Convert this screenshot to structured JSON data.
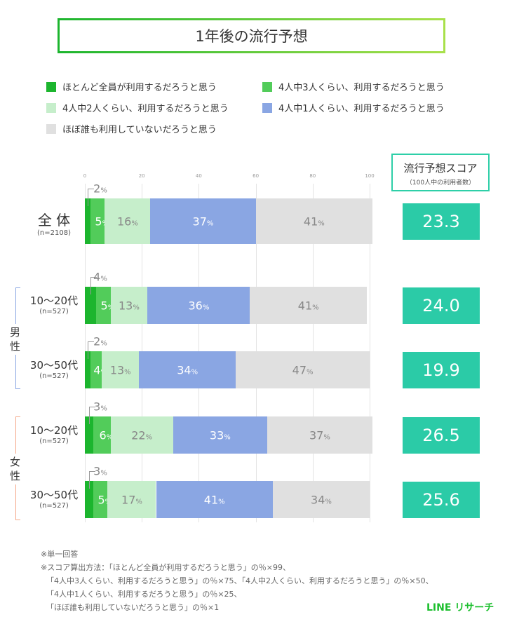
{
  "chart_data": {
    "type": "bar",
    "stacked": true,
    "orientation": "horizontal",
    "title": "1年後の流行予想",
    "xlim": [
      0,
      100
    ],
    "ticks": [
      0,
      20,
      40,
      60,
      80,
      100
    ],
    "grid": true,
    "legend_placement": "top",
    "series": [
      {
        "name": "ほとんど全員が利用するだろうと思う",
        "color": "#1cb52e"
      },
      {
        "name": "4人中3人くらい、利用するだろうと思う",
        "color": "#52cc5a"
      },
      {
        "name": "4人中2人くらい、利用するだろうと思う",
        "color": "#c6eecb"
      },
      {
        "name": "4人中1人くらい、利用するだろうと思う",
        "color": "#8aa6e3"
      },
      {
        "name": "ほぼ誰も利用していないだろうと思う",
        "color": "#e0e0e0"
      }
    ],
    "rows": [
      {
        "label": "全 体",
        "n": "(n=2108)",
        "values": [
          2,
          5,
          16,
          37,
          41
        ],
        "score": "23.3"
      },
      {
        "label": "10〜20代",
        "n": "(n=527)",
        "values": [
          4,
          5,
          13,
          36,
          41
        ],
        "score": "24.0"
      },
      {
        "label": "30〜50代",
        "n": "(n=527)",
        "values": [
          2,
          4,
          13,
          34,
          47
        ],
        "score": "19.9"
      },
      {
        "label": "10〜20代",
        "n": "(n=527)",
        "values": [
          3,
          6,
          22,
          33,
          37
        ],
        "score": "26.5"
      },
      {
        "label": "30〜50代",
        "n": "(n=527)",
        "values": [
          3,
          5,
          17,
          41,
          34
        ],
        "score": "25.6"
      }
    ],
    "groups": [
      {
        "label": "男\n性",
        "color": "#8aa6e3"
      },
      {
        "label": "女\n性",
        "color": "#f5a98a"
      }
    ],
    "percent_unit": "%"
  },
  "score_header": {
    "title": "流行予想スコア",
    "subtitle": "（100人中の利用者数）"
  },
  "notes": [
    "※単一回答",
    "※スコア算出方法：「ほとんど全員が利用するだろうと思う」の％×99、",
    "「4人中3人くらい、利用するだろうと思う」の％×75、「4人中2人くらい、利用するだろうと思う」の％×50、",
    "「4人中1人くらい、利用するだろうと思う」の％×25、",
    "「ほぼ誰も利用していないだろうと思う」の％×1"
  ],
  "brand": "LINE リサーチ"
}
